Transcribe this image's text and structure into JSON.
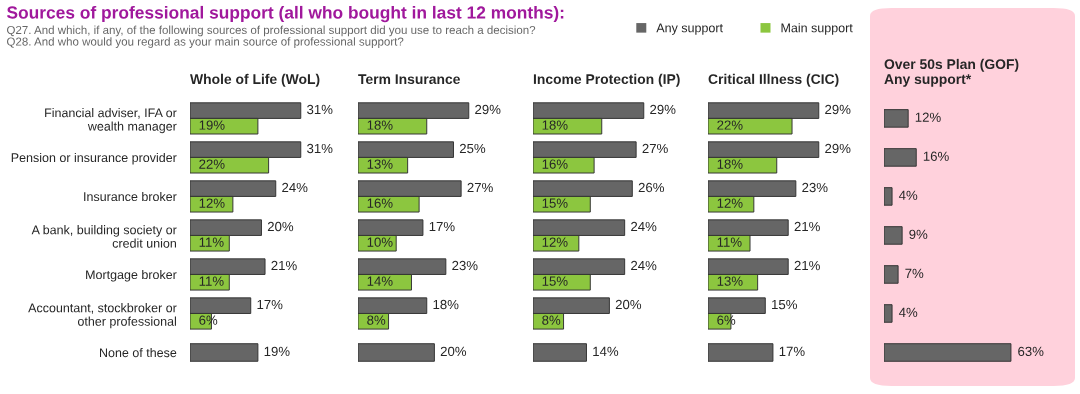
{
  "chart_data": [
    {
      "type": "other",
      "title": "Sources of professional support (all who bought in last 12 months):",
      "subtitle": "Q27. And which, if any, of the following sources of professional support did you use to reach a decision?\nQ28. And who would you regard as your main source of professional support?"
    },
    {
      "type": "bar",
      "orientation": "horizontal",
      "title": "Whole of Life (WoL)",
      "categories": [
        "Financial adviser, IFA or\nwealth manager",
        "Pension or insurance provider",
        "Insurance broker",
        "A bank, building society or\ncredit union",
        "Mortgage broker",
        "Accountant, stockbroker or\nother professional",
        "None of these"
      ],
      "series": [
        {
          "name": "Any support",
          "color": "#666666",
          "values": [
            31,
            31,
            24,
            20,
            21,
            17,
            19
          ],
          "value_labels": [
            "31%",
            "31%",
            "24%",
            "20%",
            "21%",
            "17%",
            "19%"
          ]
        },
        {
          "name": "Main support",
          "color": "#8cc63f",
          "values": [
            19,
            22,
            12,
            11,
            11,
            6,
            null
          ],
          "value_labels": [
            "19%",
            "22%",
            "12%",
            "11%",
            "11%",
            "6%",
            null
          ]
        }
      ],
      "tick_labels": "y",
      "legend": "top right"
    },
    {
      "type": "bar",
      "orientation": "horizontal",
      "title": "Term Insurance",
      "categories": [
        null,
        null,
        null,
        null,
        null,
        null,
        null
      ],
      "series": [
        {
          "color": "#666666",
          "values": [
            29,
            25,
            27,
            17,
            23,
            18,
            20
          ],
          "value_labels": [
            "29%",
            "25%",
            "27%",
            "17%",
            "23%",
            "18%",
            "20%"
          ]
        },
        {
          "color": "#8cc63f",
          "values": [
            18,
            13,
            16,
            10,
            14,
            8,
            null
          ],
          "value_labels": [
            "18%",
            "13%",
            "16%",
            "10%",
            "14%",
            "8%",
            null
          ]
        }
      ]
    },
    {
      "type": "bar",
      "orientation": "horizontal",
      "title": "Income Protection (IP)",
      "categories": [
        null,
        null,
        null,
        null,
        null,
        null,
        null
      ],
      "series": [
        {
          "color": "#666666",
          "values": [
            29,
            27,
            26,
            24,
            24,
            20,
            14
          ],
          "value_labels": [
            "29%",
            "27%",
            "26%",
            "24%",
            "24%",
            "20%",
            "14%"
          ]
        },
        {
          "color": "#8cc63f",
          "values": [
            18,
            16,
            15,
            12,
            15,
            8,
            null
          ],
          "value_labels": [
            "18%",
            "16%",
            "15%",
            "12%",
            "15%",
            "8%",
            null
          ]
        }
      ]
    },
    {
      "type": "bar",
      "orientation": "horizontal",
      "title": "Critical Illness (CIC)",
      "categories": [
        null,
        null,
        null,
        null,
        null,
        null,
        null
      ],
      "series": [
        {
          "color": "#666666",
          "values": [
            29,
            29,
            23,
            21,
            21,
            15,
            17
          ],
          "value_labels": [
            "29%",
            "29%",
            "23%",
            "21%",
            "21%",
            "15%",
            "17%"
          ]
        },
        {
          "color": "#8cc63f",
          "values": [
            22,
            18,
            12,
            11,
            13,
            6,
            null
          ],
          "value_labels": [
            "22%",
            "18%",
            "12%",
            "11%",
            "13%",
            "6%",
            null
          ]
        }
      ]
    },
    {
      "type": "bar",
      "orientation": "horizontal",
      "title": "Over 50s Plan (GOF)\nAny support*",
      "categories": [
        null,
        null,
        null,
        null,
        null,
        null,
        null
      ],
      "series": [
        {
          "color": "#666666",
          "values": [
            12,
            16,
            4,
            9,
            7,
            4,
            63
          ],
          "value_labels": [
            "12%",
            "16%",
            "4%",
            "9%",
            "7%",
            "4%",
            "63%"
          ]
        }
      ]
    }
  ]
}
